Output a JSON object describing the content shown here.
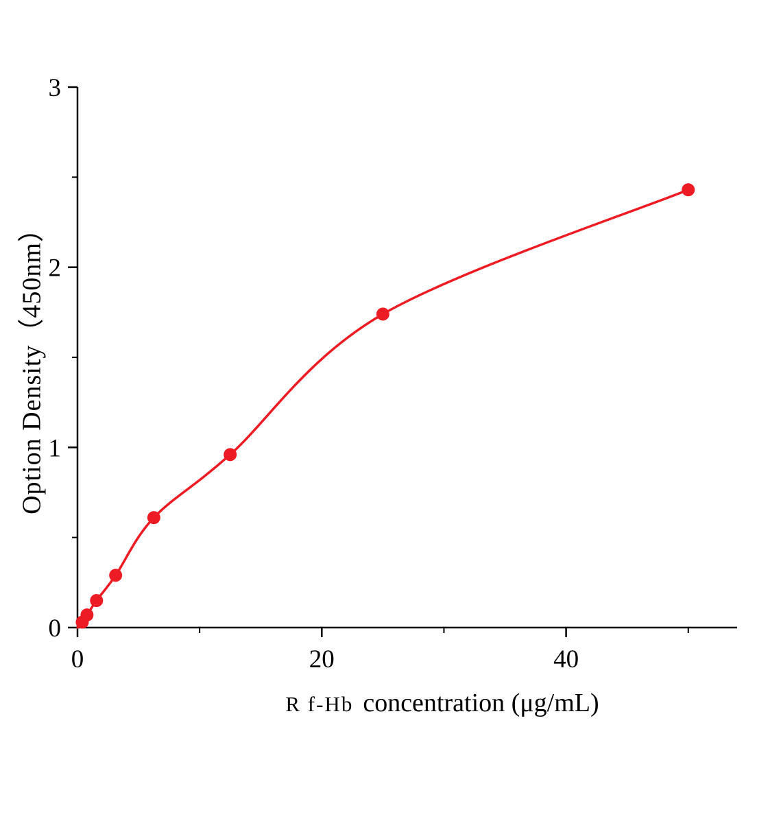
{
  "chart_data": {
    "type": "scatter",
    "title": "",
    "xlabel_prefix": "R f-Hb",
    "xlabel_rest": "concentration (μg/mL)",
    "ylabel": "Option Density（450nm）",
    "x": [
      0.39,
      0.78,
      1.56,
      3.125,
      6.25,
      12.5,
      25,
      50
    ],
    "y": [
      0.03,
      0.07,
      0.15,
      0.29,
      0.61,
      0.96,
      1.74,
      2.43
    ],
    "curve_start": [
      0,
      0
    ],
    "xlim": [
      0,
      54
    ],
    "ylim": [
      0,
      3
    ],
    "x_major_ticks": [
      0,
      20,
      40
    ],
    "x_minor_ticks": [
      10,
      30,
      50
    ],
    "y_major_ticks": [
      0,
      1,
      2,
      3
    ],
    "y_minor_ticks": [
      0.5,
      1.5,
      2.5
    ],
    "grid": false,
    "legend": false,
    "point_color": "#ed1c24",
    "line_color": "#ed1c24",
    "axis_color": "#000000",
    "marker_radius": 9.5
  }
}
